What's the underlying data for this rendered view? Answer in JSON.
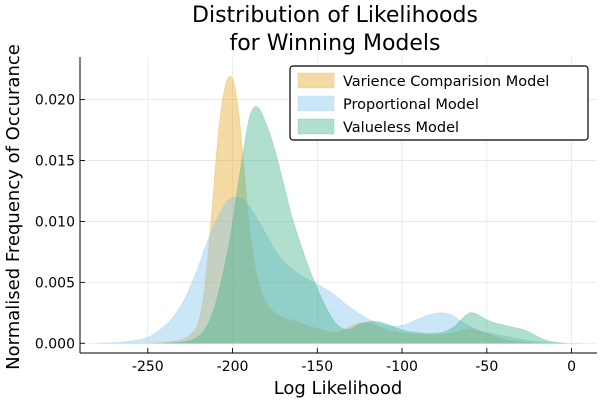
{
  "chart_data": {
    "type": "area",
    "title_lines": [
      "Distribution of Likelihoods",
      "for Winning Models"
    ],
    "xlabel": "Log Likelihood",
    "ylabel": "Normalised Frequency of Occurance",
    "xlim": [
      -290,
      15
    ],
    "ylim": [
      -0.0008,
      0.0235
    ],
    "xticks": [
      -250,
      -200,
      -150,
      -100,
      -50,
      0
    ],
    "xtick_labels": [
      "-250",
      "-200",
      "-150",
      "-100",
      "-50",
      "0"
    ],
    "yticks": [
      0.0,
      0.005,
      0.01,
      0.015,
      0.02
    ],
    "ytick_labels": [
      "0.000",
      "0.005",
      "0.010",
      "0.015",
      "0.020"
    ],
    "grid": true,
    "legend_position": "top-right",
    "series": [
      {
        "name": "Varience Comparision Model",
        "color": "#e3a21a",
        "points": [
          [
            -248,
            0.0
          ],
          [
            -238,
            0.0001
          ],
          [
            -230,
            0.0003
          ],
          [
            -224,
            0.0008
          ],
          [
            -220,
            0.0018
          ],
          [
            -217,
            0.004
          ],
          [
            -214,
            0.008
          ],
          [
            -211,
            0.013
          ],
          [
            -208,
            0.0178
          ],
          [
            -205,
            0.0207
          ],
          [
            -202,
            0.0219
          ],
          [
            -199,
            0.0213
          ],
          [
            -196,
            0.0185
          ],
          [
            -193,
            0.014
          ],
          [
            -190,
            0.0095
          ],
          [
            -186,
            0.0058
          ],
          [
            -181,
            0.0036
          ],
          [
            -176,
            0.0026
          ],
          [
            -170,
            0.0021
          ],
          [
            -163,
            0.0018
          ],
          [
            -155,
            0.0014
          ],
          [
            -147,
            0.0011
          ],
          [
            -140,
            0.0009
          ],
          [
            -133,
            0.0012
          ],
          [
            -127,
            0.0016
          ],
          [
            -121,
            0.0017
          ],
          [
            -114,
            0.0014
          ],
          [
            -107,
            0.001
          ],
          [
            -98,
            0.0008
          ],
          [
            -88,
            0.0007
          ],
          [
            -78,
            0.0007
          ],
          [
            -68,
            0.0009
          ],
          [
            -60,
            0.0012
          ],
          [
            -52,
            0.0009
          ],
          [
            -44,
            0.0005
          ],
          [
            -36,
            0.0002
          ],
          [
            -28,
            0.0001
          ],
          [
            -20,
            0.0
          ]
        ]
      },
      {
        "name": "Proportional Model",
        "color": "#7ec3ec",
        "points": [
          [
            -280,
            0.0
          ],
          [
            -265,
            0.0001
          ],
          [
            -252,
            0.0004
          ],
          [
            -244,
            0.001
          ],
          [
            -236,
            0.002
          ],
          [
            -228,
            0.0037
          ],
          [
            -221,
            0.006
          ],
          [
            -215,
            0.0083
          ],
          [
            -209,
            0.0103
          ],
          [
            -203,
            0.0117
          ],
          [
            -198,
            0.012
          ],
          [
            -193,
            0.0117
          ],
          [
            -188,
            0.0108
          ],
          [
            -182,
            0.0094
          ],
          [
            -176,
            0.0079
          ],
          [
            -169,
            0.0066
          ],
          [
            -162,
            0.0058
          ],
          [
            -155,
            0.0052
          ],
          [
            -148,
            0.0047
          ],
          [
            -141,
            0.0041
          ],
          [
            -134,
            0.0033
          ],
          [
            -127,
            0.0026
          ],
          [
            -120,
            0.002
          ],
          [
            -113,
            0.0016
          ],
          [
            -106,
            0.0014
          ],
          [
            -99,
            0.0015
          ],
          [
            -92,
            0.0019
          ],
          [
            -85,
            0.0023
          ],
          [
            -78,
            0.0025
          ],
          [
            -72,
            0.0024
          ],
          [
            -66,
            0.0019
          ],
          [
            -60,
            0.0014
          ],
          [
            -54,
            0.001
          ],
          [
            -47,
            0.0008
          ],
          [
            -40,
            0.0006
          ],
          [
            -32,
            0.0004
          ],
          [
            -24,
            0.0002
          ],
          [
            -16,
            0.0001
          ],
          [
            -8,
            0.0
          ],
          [
            5,
            0.0
          ]
        ]
      },
      {
        "name": "Valueless Model",
        "color": "#3aaf85",
        "points": [
          [
            -240,
            0.0
          ],
          [
            -230,
            0.0001
          ],
          [
            -222,
            0.0004
          ],
          [
            -216,
            0.0012
          ],
          [
            -211,
            0.0028
          ],
          [
            -206,
            0.0055
          ],
          [
            -201,
            0.009
          ],
          [
            -197,
            0.0128
          ],
          [
            -193,
            0.0163
          ],
          [
            -190,
            0.0186
          ],
          [
            -187,
            0.0194
          ],
          [
            -184,
            0.0192
          ],
          [
            -181,
            0.0183
          ],
          [
            -177,
            0.0168
          ],
          [
            -173,
            0.0148
          ],
          [
            -169,
            0.0126
          ],
          [
            -165,
            0.0104
          ],
          [
            -160,
            0.0082
          ],
          [
            -155,
            0.0062
          ],
          [
            -150,
            0.0045
          ],
          [
            -145,
            0.003
          ],
          [
            -140,
            0.0018
          ],
          [
            -135,
            0.0012
          ],
          [
            -130,
            0.0012
          ],
          [
            -124,
            0.0016
          ],
          [
            -118,
            0.0018
          ],
          [
            -112,
            0.0017
          ],
          [
            -106,
            0.0014
          ],
          [
            -100,
            0.0011
          ],
          [
            -92,
            0.0009
          ],
          [
            -84,
            0.0008
          ],
          [
            -76,
            0.0009
          ],
          [
            -69,
            0.0014
          ],
          [
            -64,
            0.0021
          ],
          [
            -60,
            0.0025
          ],
          [
            -56,
            0.0024
          ],
          [
            -51,
            0.002
          ],
          [
            -46,
            0.0017
          ],
          [
            -40,
            0.0015
          ],
          [
            -34,
            0.0013
          ],
          [
            -28,
            0.0011
          ],
          [
            -22,
            0.0007
          ],
          [
            -16,
            0.0003
          ],
          [
            -10,
            0.0001
          ],
          [
            -4,
            0.0
          ]
        ]
      }
    ]
  }
}
